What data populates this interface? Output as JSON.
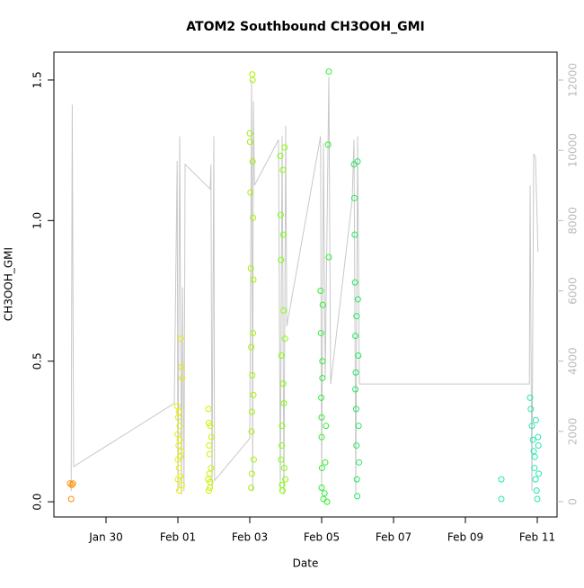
{
  "chart_data": {
    "type": "scatter",
    "title": "ATOM2 Southbound CH3OOH_GMI",
    "x_label": "Date",
    "y_label": "CH3OOH_GMI",
    "xlim": [
      28.55,
      42.55
    ],
    "xticks": [
      {
        "value": 30,
        "label": "Jan 30"
      },
      {
        "value": 32,
        "label": "Feb 01"
      },
      {
        "value": 34,
        "label": "Feb 03"
      },
      {
        "value": 36,
        "label": "Feb 05"
      },
      {
        "value": 38,
        "label": "Feb 07"
      },
      {
        "value": 40,
        "label": "Feb 09"
      },
      {
        "value": 42,
        "label": "Feb 11"
      }
    ],
    "ylim": [
      -0.054,
      1.599
    ],
    "yticks": [
      {
        "value": 0,
        "label": "0.0"
      },
      0.5,
      {
        "value": 1,
        "label": "1.0"
      },
      1.5
    ],
    "y2lim": [
      -435,
      12794
    ],
    "y2ticks": [
      0,
      2000,
      4000,
      6000,
      8000,
      10000,
      12000
    ],
    "series": [
      {
        "color": "#ff8c00",
        "x": [
          29.0,
          29.05,
          29.08,
          29.03
        ],
        "values": [
          0.065,
          0.06,
          0.065,
          0.01
        ]
      },
      {
        "color": "#e6f000",
        "x": [
          31.98,
          31.99,
          32.0,
          32.0,
          32.01,
          32.02,
          32.03,
          32.04,
          32.05,
          32.06,
          32.07,
          32.08,
          32.1,
          32.12,
          32.05,
          32.09,
          32.11,
          32.03
        ],
        "values": [
          0.34,
          0.24,
          0.15,
          0.08,
          0.3,
          0.2,
          0.12,
          0.04,
          0.27,
          0.16,
          0.09,
          0.58,
          0.48,
          0.44,
          0.22,
          0.18,
          0.06,
          0.32
        ]
      },
      {
        "color": "#d0f000",
        "x": [
          32.85,
          32.86,
          32.87,
          32.88,
          32.89,
          32.9,
          32.88,
          32.92,
          32.93,
          32.86,
          32.9,
          32.84
        ],
        "values": [
          0.33,
          0.28,
          0.2,
          0.1,
          0.05,
          0.07,
          0.17,
          0.12,
          0.23,
          0.04,
          0.27,
          0.08
        ]
      },
      {
        "color": "#a8f000",
        "x": [
          34.0,
          34.01,
          34.02,
          34.03,
          34.04,
          34.05,
          34.06,
          34.07,
          34.08,
          34.08,
          34.09,
          34.1,
          34.1,
          34.11,
          34.04,
          34.06,
          34.09,
          34.07
        ],
        "values": [
          1.31,
          1.28,
          1.1,
          0.83,
          0.55,
          0.25,
          0.1,
          1.52,
          1.5,
          1.21,
          1.01,
          0.79,
          0.38,
          0.15,
          0.05,
          0.32,
          0.6,
          0.45
        ]
      },
      {
        "color": "#80ff00",
        "x": [
          34.85,
          34.86,
          34.87,
          34.88,
          34.89,
          34.9,
          34.91,
          34.92,
          34.93,
          34.94,
          34.95,
          34.96,
          34.97,
          34.98,
          34.99,
          34.9,
          34.93,
          34.87
        ],
        "values": [
          1.23,
          1.02,
          0.86,
          0.52,
          0.2,
          0.06,
          0.04,
          1.18,
          0.95,
          0.68,
          0.35,
          0.12,
          1.26,
          0.58,
          0.08,
          0.27,
          0.42,
          0.15
        ]
      },
      {
        "color": "#30f030",
        "x": [
          35.97,
          35.98,
          35.99,
          36.0,
          36.0,
          36.01,
          36.02,
          36.03,
          36.05,
          36.08,
          36.1,
          36.12,
          36.15,
          36.2,
          36.18,
          36.2,
          36.0,
          36.02
        ],
        "values": [
          0.75,
          0.6,
          0.37,
          0.23,
          0.05,
          0.12,
          0.5,
          0.7,
          0.01,
          0.03,
          0.14,
          0.27,
          0.0,
          1.53,
          1.27,
          0.87,
          0.3,
          0.44
        ]
      },
      {
        "color": "#20e860",
        "x": [
          36.9,
          36.91,
          36.92,
          36.93,
          36.94,
          36.95,
          36.96,
          36.97,
          36.98,
          36.99,
          37.0,
          37.01,
          37.02,
          37.03,
          37.04,
          36.94,
          36.97
        ],
        "values": [
          1.2,
          1.08,
          0.95,
          0.78,
          0.59,
          0.46,
          0.33,
          0.2,
          0.08,
          0.02,
          1.21,
          0.72,
          0.52,
          0.27,
          0.14,
          0.4,
          0.66
        ]
      },
      {
        "color": "#20e8b0",
        "x": [
          41.0,
          41.0,
          41.8,
          41.82,
          41.85,
          41.88,
          41.9,
          41.92,
          41.95,
          41.98,
          42.0,
          42.02,
          42.03,
          42.04,
          41.96,
          41.93
        ],
        "values": [
          0.08,
          0.01,
          0.37,
          0.33,
          0.27,
          0.22,
          0.18,
          0.12,
          0.08,
          0.04,
          0.01,
          0.23,
          0.2,
          0.1,
          0.29,
          0.16
        ]
      },
      {
        "type": "line",
        "axis": "y2",
        "color": "#c8c8c8",
        "x": [
          29.03,
          29.06,
          29.1,
          31.9,
          31.98,
          32.0,
          32.05,
          32.1,
          32.13,
          32.17,
          32.2,
          32.9,
          32.92,
          32.95,
          33.0,
          33.02,
          34.0,
          34.05,
          34.08,
          34.1,
          34.13,
          34.8,
          34.85,
          34.9,
          34.95,
          35.0,
          35.03,
          35.97,
          36.0,
          36.05,
          36.1,
          36.2,
          36.25,
          36.85,
          36.9,
          36.95,
          37.0,
          37.05,
          41.78,
          41.8,
          41.85,
          41.9,
          41.95,
          42.02
        ],
        "values": [
          300,
          11300,
          1000,
          2800,
          9700,
          300,
          10400,
          200,
          6100,
          300,
          9600,
          8900,
          9600,
          400,
          10400,
          600,
          1800,
          12000,
          300,
          11400,
          9000,
          10300,
          300,
          10400,
          200,
          10700,
          5000,
          10400,
          300,
          10200,
          3500,
          12100,
          3350,
          8600,
          10300,
          200,
          10400,
          3350,
          3350,
          9000,
          300,
          9900,
          9800,
          7100
        ]
      }
    ]
  }
}
